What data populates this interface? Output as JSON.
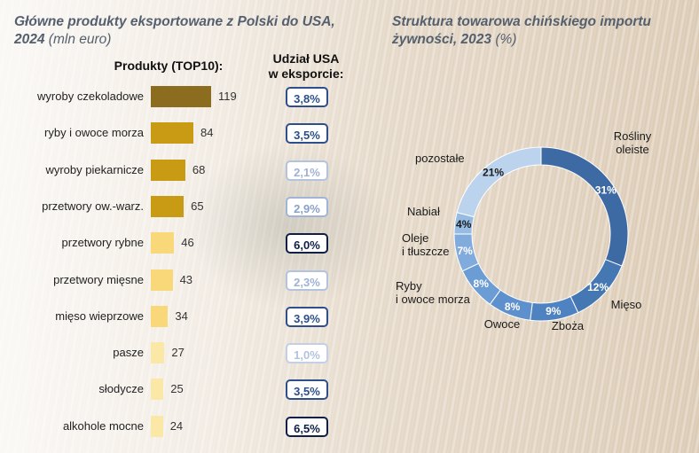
{
  "left_title": {
    "main": "Główne produkty eksportowane z Polski do USA,",
    "year": "2024",
    "unit": "(mln euro)"
  },
  "right_title": {
    "line1": "Struktura towarowa chińskiego importu",
    "line2": "żywności, 2023",
    "unit": "(%)"
  },
  "headers": {
    "products": "Produkty (TOP10):",
    "share1": "Udział USA",
    "share2": "w eksporcie:"
  },
  "chart_data": [
    {
      "type": "bar",
      "orientation": "horizontal",
      "title": "Główne produkty eksportowane z Polski do USA, 2024 (mln euro)",
      "categories": [
        "wyroby czekoladowe",
        "ryby i owoce morza",
        "wyroby piekarnicze",
        "przetwory ow.-warz.",
        "przetwory rybne",
        "przetwory mięsne",
        "mięso wieprzowe",
        "pasze",
        "słodycze",
        "alkohole mocne"
      ],
      "values": [
        119,
        84,
        68,
        65,
        46,
        43,
        34,
        27,
        25,
        24
      ],
      "value_labels": [
        "119",
        "84",
        "68",
        "65",
        "46",
        "43",
        "34",
        "27",
        "25",
        "24"
      ],
      "bar_colors": [
        "#8c6d1f",
        "#c99a14",
        "#c99a14",
        "#c99a14",
        "#f8d878",
        "#f8d878",
        "#f8d878",
        "#fbe7a6",
        "#fbe7a6",
        "#fbe7a6"
      ],
      "share_column": {
        "labels": [
          "3,8%",
          "3,5%",
          "2,1%",
          "2,9%",
          "6,0%",
          "2,3%",
          "3,9%",
          "1,0%",
          "3,5%",
          "6,5%"
        ],
        "values": [
          3.8,
          3.5,
          2.1,
          2.9,
          6.0,
          2.3,
          3.9,
          1.0,
          3.5,
          6.5
        ],
        "text_colors": [
          "#2e4f8a",
          "#2e4f8a",
          "#9fb2d4",
          "#8aa0c6",
          "#0f1f45",
          "#9fb2d4",
          "#2e4f8a",
          "#b3c2dd",
          "#2e4f8a",
          "#0f1f45"
        ],
        "border_colors": [
          "#2e4f8a",
          "#2e4f8a",
          "#b3c2dd",
          "#a2b4d6",
          "#0f1f45",
          "#b3c2dd",
          "#2e4f8a",
          "#c3cfe6",
          "#2e4f8a",
          "#0f1f45"
        ]
      },
      "xlim": [
        0,
        119
      ]
    },
    {
      "type": "pie",
      "variant": "donut",
      "title": "Struktura towarowa chińskiego importu żywności, 2023 (%)",
      "slices": [
        {
          "label": "Rośliny oleiste",
          "label_lines": [
            "Rośliny",
            "oleiste"
          ],
          "value": 31,
          "pct_label": "31%",
          "color": "#3d6aa3"
        },
        {
          "label": "Mięso",
          "label_lines": [
            "Mięso"
          ],
          "value": 12,
          "pct_label": "12%",
          "color": "#4577b3"
        },
        {
          "label": "Zboża",
          "label_lines": [
            "Zboża"
          ],
          "value": 9,
          "pct_label": "9%",
          "color": "#4f82c0"
        },
        {
          "label": "Owoce",
          "label_lines": [
            "Owoce"
          ],
          "value": 8,
          "pct_label": "8%",
          "color": "#5d90cc"
        },
        {
          "label": "Ryby i owoce morza",
          "label_lines": [
            "Ryby",
            "i owoce morza"
          ],
          "value": 8,
          "pct_label": "8%",
          "color": "#6c9cd4"
        },
        {
          "label": "Oleje i tłuszcze",
          "label_lines": [
            "Oleje",
            "i tłuszcze"
          ],
          "value": 7,
          "pct_label": "7%",
          "color": "#80abdc"
        },
        {
          "label": "Nabiał",
          "label_lines": [
            "Nabiał"
          ],
          "value": 4,
          "pct_label": "4%",
          "color": "#97bce4"
        },
        {
          "label": "pozostałe",
          "label_lines": [
            "pozostałe"
          ],
          "value": 21,
          "pct_label": "21%",
          "color": "#bcd3ee"
        }
      ]
    }
  ]
}
